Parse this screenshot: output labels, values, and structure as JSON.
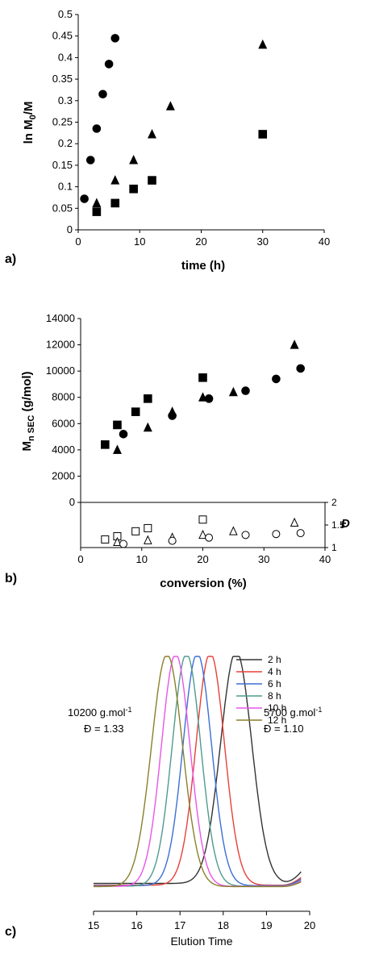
{
  "figure": {
    "panel_a": {
      "label": "a)",
      "xlabel": "time (h)",
      "ylabel_main": "ln M",
      "ylabel_sub": "0",
      "ylabel_tail": "/M",
      "x_ticks": [
        "0",
        "10",
        "20",
        "30",
        "40"
      ],
      "y_ticks": [
        "0",
        "0.05",
        "0.1",
        "0.15",
        "0.2",
        "0.25",
        "0.3",
        "0.35",
        "0.4",
        "0.45",
        "0.5"
      ]
    },
    "panel_b": {
      "label": "b)",
      "xlabel": "conversion (%)",
      "ylabel_main": "M",
      "ylabel_sub": "n SEC",
      "ylabel_tail": " (g/mol)",
      "ylabel_right": "Đ",
      "x_ticks": [
        "0",
        "10",
        "20",
        "30",
        "40"
      ],
      "y_ticks": [
        "0",
        "2000",
        "4000",
        "6000",
        "8000",
        "10000",
        "12000",
        "14000"
      ],
      "y2_ticks": [
        "1",
        "1.5",
        "2"
      ]
    },
    "panel_c": {
      "label": "c)",
      "xlabel": "Elution Time",
      "x_ticks": [
        "15",
        "16",
        "17",
        "18",
        "19",
        "20"
      ],
      "annotation_left_mass": "10200 g.mol",
      "annotation_left_disp": "Đ = 1.33",
      "annotation_right_mass": "5700 g.mol",
      "annotation_right_disp": "Đ = 1.10",
      "annotation_exp": "-1"
    }
  },
  "chart_data": [
    {
      "type": "scatter",
      "xlim": [
        0,
        40
      ],
      "ylim": [
        0,
        0.5
      ],
      "series": [
        {
          "marker": "circle",
          "color": "#000000",
          "points": [
            [
              1,
              0.072
            ],
            [
              2,
              0.162
            ],
            [
              3,
              0.235
            ],
            [
              4,
              0.315
            ],
            [
              5,
              0.385
            ],
            [
              6,
              0.445
            ]
          ]
        },
        {
          "marker": "triangle",
          "color": "#000000",
          "points": [
            [
              3,
              0.062
            ],
            [
              6,
              0.115
            ],
            [
              9,
              0.162
            ],
            [
              12,
              0.222
            ],
            [
              15,
              0.287
            ],
            [
              30,
              0.43
            ]
          ]
        },
        {
          "marker": "square",
          "color": "#000000",
          "points": [
            [
              3,
              0.042
            ],
            [
              6,
              0.062
            ],
            [
              9,
              0.095
            ],
            [
              12,
              0.115
            ],
            [
              30,
              0.222
            ]
          ]
        }
      ]
    },
    {
      "type": "scatter",
      "xlim": [
        0,
        40
      ],
      "ylim": [
        0,
        14000
      ],
      "y2lim": [
        1,
        2
      ],
      "series": [
        {
          "marker": "square",
          "fill": "filled",
          "axis": "left",
          "points": [
            [
              4,
              4400
            ],
            [
              6,
              5900
            ],
            [
              9,
              6900
            ],
            [
              11,
              7900
            ],
            [
              20,
              9500
            ]
          ]
        },
        {
          "marker": "triangle",
          "fill": "filled",
          "axis": "left",
          "points": [
            [
              6,
              4000
            ],
            [
              11,
              5700
            ],
            [
              15,
              6900
            ],
            [
              20,
              8000
            ],
            [
              25,
              8400
            ],
            [
              35,
              12000
            ]
          ]
        },
        {
          "marker": "circle",
          "fill": "filled",
          "axis": "left",
          "points": [
            [
              7,
              5200
            ],
            [
              15,
              6600
            ],
            [
              21,
              7900
            ],
            [
              27,
              8500
            ],
            [
              32,
              9400
            ],
            [
              36,
              10200
            ]
          ]
        },
        {
          "marker": "square",
          "fill": "open",
          "axis": "right",
          "points": [
            [
              4,
              1.18
            ],
            [
              6,
              1.25
            ],
            [
              9,
              1.36
            ],
            [
              11,
              1.43
            ],
            [
              20,
              1.62
            ]
          ]
        },
        {
          "marker": "triangle",
          "fill": "open",
          "axis": "right",
          "points": [
            [
              6,
              1.12
            ],
            [
              11,
              1.16
            ],
            [
              15,
              1.22
            ],
            [
              20,
              1.28
            ],
            [
              25,
              1.36
            ],
            [
              35,
              1.55
            ]
          ]
        },
        {
          "marker": "circle",
          "fill": "open",
          "axis": "right",
          "points": [
            [
              7,
              1.08
            ],
            [
              15,
              1.15
            ],
            [
              21,
              1.22
            ],
            [
              27,
              1.28
            ],
            [
              32,
              1.3
            ],
            [
              36,
              1.32
            ]
          ]
        }
      ]
    },
    {
      "type": "line",
      "xlim": [
        15,
        20
      ],
      "series": [
        {
          "name": "2 h",
          "color": "#333333",
          "peak": 18.3,
          "width": 0.36,
          "tail": 0.45
        },
        {
          "name": "4 h",
          "color": "#e8403a",
          "peak": 17.7,
          "width": 0.33,
          "tail": 0.3
        },
        {
          "name": "6 h",
          "color": "#3b6fd4",
          "peak": 17.4,
          "width": 0.33,
          "tail": 0.26
        },
        {
          "name": "8 h",
          "color": "#4f9a8e",
          "peak": 17.15,
          "width": 0.33,
          "tail": 0.22
        },
        {
          "name": "10 h",
          "color": "#e856e8",
          "peak": 16.9,
          "width": 0.33,
          "tail": 0.2
        },
        {
          "name": "12 h",
          "color": "#8a7f2a",
          "peak": 16.7,
          "width": 0.36,
          "tail": 0.18
        }
      ]
    }
  ]
}
